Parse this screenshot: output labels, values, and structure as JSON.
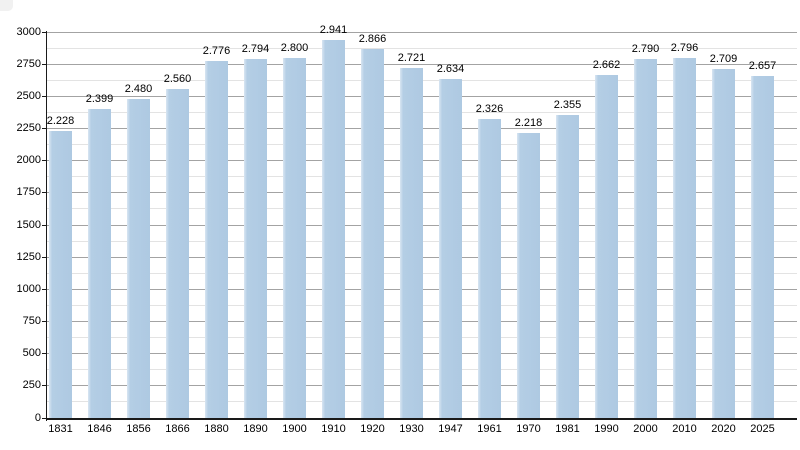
{
  "page": {
    "background_color": "#ffffff",
    "text_color": "#000000"
  },
  "chart_data": {
    "type": "bar",
    "title": "",
    "xlabel": "",
    "ylabel": "",
    "categories": [
      "1831",
      "1846",
      "1856",
      "1866",
      "1880",
      "1890",
      "1900",
      "1910",
      "1920",
      "1930",
      "1947",
      "1961",
      "1970",
      "1981",
      "1990",
      "2000",
      "2010",
      "2020",
      "2025"
    ],
    "values": [
      2228,
      2399,
      2480,
      2560,
      2776,
      2794,
      2800,
      2941,
      2866,
      2721,
      2634,
      2326,
      2218,
      2355,
      2662,
      2790,
      2796,
      2709,
      2657
    ],
    "value_labels": [
      "2.228",
      "2.399",
      "2.480",
      "2.560",
      "2.776",
      "2.794",
      "2.800",
      "2.941",
      "2.866",
      "2.721",
      "2.634",
      "2.326",
      "2.218",
      "2.355",
      "2.662",
      "2.790",
      "2.796",
      "2.709",
      "2.657"
    ],
    "y_axis": {
      "min": 0,
      "max": 3000,
      "major_step": 250,
      "minor_step": 125,
      "tick_labels": [
        "0",
        "250",
        "500",
        "750",
        "1000",
        "1250",
        "1500",
        "1750",
        "2000",
        "2250",
        "2500",
        "2750",
        "3000"
      ]
    },
    "grid": "on",
    "legend": "none",
    "colors": {
      "bar_fill": "#b2cce4",
      "bar_fill_light_edge": "#d9e6f2",
      "grid_major": "#a3a3a3",
      "grid_minor": "#e3e3e3",
      "axis": "#1a1a1a",
      "text": "#000000"
    }
  }
}
